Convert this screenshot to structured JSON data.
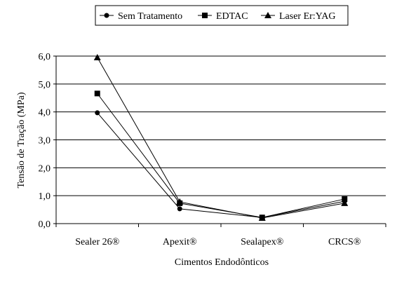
{
  "chart_data": {
    "type": "line",
    "title": "",
    "xlabel": "Cimentos Endodônticos",
    "ylabel": "Tensão de Tração (MPa)",
    "categories": [
      "Sealer 26®",
      "Apexit®",
      "Sealapex®",
      "CRCS®"
    ],
    "ylim": [
      0,
      6
    ],
    "yticks": [
      "0,0",
      "1,0",
      "2,0",
      "3,0",
      "4,0",
      "5,0",
      "6,0"
    ],
    "grid": "horizontal",
    "legend_position": "top",
    "series": [
      {
        "name": "Sem Tratamento",
        "marker": "circle",
        "color": "#000000",
        "values": [
          3.97,
          0.53,
          0.22,
          0.8
        ]
      },
      {
        "name": "EDTAC",
        "marker": "square",
        "color": "#000000",
        "values": [
          4.66,
          0.73,
          0.22,
          0.88
        ]
      },
      {
        "name": "Laser Er:YAG",
        "marker": "triangle",
        "color": "#000000",
        "values": [
          5.95,
          0.78,
          0.2,
          0.73
        ]
      }
    ]
  }
}
